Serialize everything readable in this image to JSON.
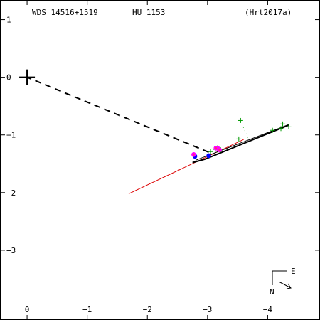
{
  "header": {
    "wds_id": "WDS 14516+1519",
    "discoverer": "HU 1153",
    "orbit_ref": "(Hrt2017a)"
  },
  "chart_data": {
    "type": "scatter",
    "title": "",
    "xlabel": "",
    "ylabel": "",
    "xlim": [
      0.45,
      -4.87
    ],
    "ylim": [
      -4.21,
      1.34
    ],
    "x_ticks": [
      {
        "value": -4,
        "label": "−4"
      },
      {
        "value": -3,
        "label": "−3"
      },
      {
        "value": -2,
        "label": "−2"
      },
      {
        "value": -1,
        "label": "−1"
      },
      {
        "value": 0,
        "label": "0"
      }
    ],
    "y_ticks": [
      {
        "value": 1,
        "label": "1"
      },
      {
        "value": 0,
        "label": "0"
      },
      {
        "value": -1,
        "label": "−1"
      },
      {
        "value": -2,
        "label": "−2"
      },
      {
        "value": -3,
        "label": "−3"
      }
    ],
    "primary": {
      "x": 0,
      "y": 0
    },
    "orbit_arc": [
      {
        "x": -4.35,
        "y": -0.83
      },
      {
        "x": -2.96,
        "y": -1.42
      },
      {
        "x": -2.75,
        "y": -1.48
      }
    ],
    "node_line_black": [
      {
        "x": -4.35,
        "y": -0.82
      },
      {
        "x": -2.8,
        "y": -1.44
      }
    ],
    "node_line_red": [
      {
        "x": -3.6,
        "y": -1.08
      },
      {
        "x": -1.69,
        "y": -2.02
      }
    ],
    "periastron_line": [
      {
        "x": -3.02,
        "y": -1.3
      },
      {
        "x": 0,
        "y": 0
      }
    ],
    "observations": {
      "micrometer": [
        {
          "x": -4.35,
          "y": -0.86
        },
        {
          "x": -4.25,
          "y": -0.81
        },
        {
          "x": -4.22,
          "y": -0.89
        },
        {
          "x": -4.08,
          "y": -0.92
        },
        {
          "x": -3.55,
          "y": -0.75
        },
        {
          "x": -3.52,
          "y": -1.07
        },
        {
          "x": -3.17,
          "y": -1.22
        },
        {
          "x": -3.13,
          "y": -1.25
        },
        {
          "x": -3.05,
          "y": -1.29
        },
        {
          "x": -3.22,
          "y": -1.26
        }
      ],
      "speckle": [
        {
          "x": -3.18,
          "y": -1.24
        },
        {
          "x": -3.14,
          "y": -1.23
        },
        {
          "x": -3.2,
          "y": -1.26
        },
        {
          "x": -2.77,
          "y": -1.34
        }
      ],
      "interferometric": [
        {
          "x": -3.02,
          "y": -1.36
        },
        {
          "x": -2.79,
          "y": -1.37
        }
      ]
    },
    "residual_lines": [
      {
        "from": {
          "x": -3.55,
          "y": -0.75
        },
        "to": {
          "x": -3.67,
          "y": -1.05
        }
      },
      {
        "from": {
          "x": -3.52,
          "y": -1.07
        },
        "to": {
          "x": -3.55,
          "y": -1.11
        }
      }
    ],
    "colors": {
      "micrometer": "#009900",
      "speckle": "#ff00ff",
      "interferometric": "#0000ff",
      "speckle_inner": "#ff3366",
      "orbit": "#000000",
      "node_red": "#dd0000"
    },
    "compass": {
      "east_label": "E",
      "north_label": "N"
    }
  }
}
